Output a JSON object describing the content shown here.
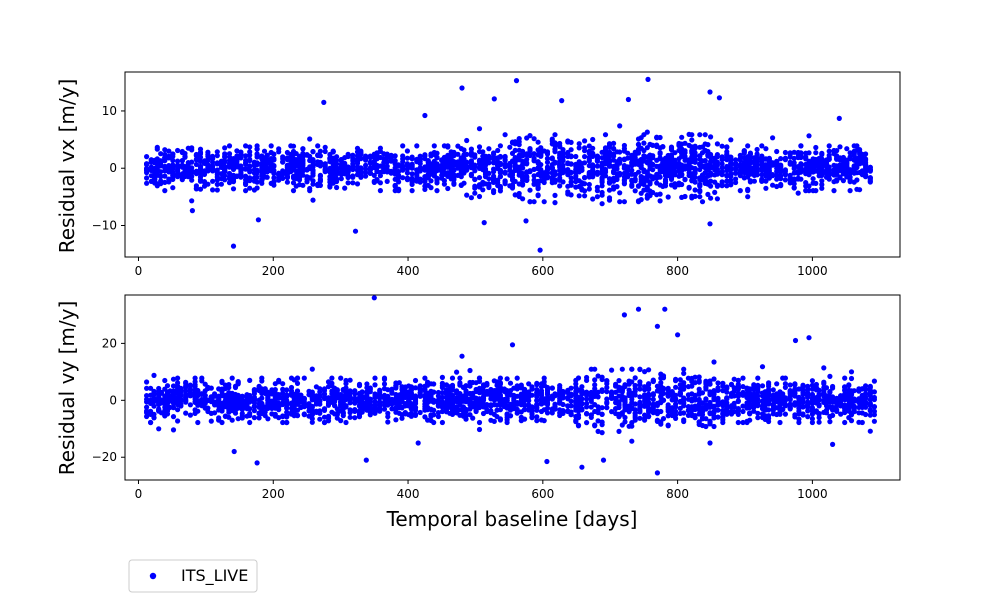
{
  "chart_data": [
    {
      "type": "scatter",
      "ylabel": "Residual vx [m/y]",
      "xlim": [
        -20,
        1130
      ],
      "ylim": [
        -15.5,
        16.8
      ],
      "xticks": [
        0,
        200,
        400,
        600,
        800,
        1000
      ],
      "yticks": [
        -10,
        0,
        10
      ],
      "series": [
        {
          "name": "ITS_LIVE",
          "color": "#0000ff",
          "marker": "circle",
          "x_min": 12,
          "x_max": 1092,
          "typical_spread": 3,
          "notable_points": [
            {
              "x": 141,
              "y": -13.6
            },
            {
              "x": 275,
              "y": 11.5
            },
            {
              "x": 322,
              "y": -11.0
            },
            {
              "x": 480,
              "y": 14.0
            },
            {
              "x": 561,
              "y": 15.3
            },
            {
              "x": 596,
              "y": -14.3
            },
            {
              "x": 756,
              "y": 15.5
            },
            {
              "x": 848,
              "y": 13.3
            },
            {
              "x": 1040,
              "y": 8.7
            },
            {
              "x": 628,
              "y": 11.8
            },
            {
              "x": 727,
              "y": 12.0
            },
            {
              "x": 862,
              "y": 12.3
            },
            {
              "x": 528,
              "y": 12.1
            },
            {
              "x": 425,
              "y": 9.2
            },
            {
              "x": 178,
              "y": -9.0
            },
            {
              "x": 80,
              "y": -7.4
            },
            {
              "x": 848,
              "y": -9.7
            },
            {
              "x": 513,
              "y": -9.5
            },
            {
              "x": 575,
              "y": -9.2
            }
          ]
        }
      ]
    },
    {
      "type": "scatter",
      "ylabel": "Residual vy [m/y]",
      "xlabel": "Temporal baseline [days]",
      "xlim": [
        -20,
        1130
      ],
      "ylim": [
        -28,
        37
      ],
      "xticks": [
        0,
        200,
        400,
        600,
        800,
        1000
      ],
      "yticks": [
        -20,
        0,
        20
      ],
      "series": [
        {
          "name": "ITS_LIVE",
          "color": "#0000ff",
          "marker": "circle",
          "x_min": 12,
          "x_max": 1092,
          "typical_spread": 6,
          "notable_points": [
            {
              "x": 350,
              "y": 36.0
            },
            {
              "x": 742,
              "y": 32.0
            },
            {
              "x": 781,
              "y": 32.0
            },
            {
              "x": 721,
              "y": 30.0
            },
            {
              "x": 770,
              "y": 26.0
            },
            {
              "x": 800,
              "y": 23.0
            },
            {
              "x": 975,
              "y": 21.0
            },
            {
              "x": 995,
              "y": 22.0
            },
            {
              "x": 555,
              "y": 19.5
            },
            {
              "x": 480,
              "y": 15.5
            },
            {
              "x": 176,
              "y": -22.0
            },
            {
              "x": 338,
              "y": -21.0
            },
            {
              "x": 606,
              "y": -21.5
            },
            {
              "x": 658,
              "y": -23.5
            },
            {
              "x": 770,
              "y": -25.5
            },
            {
              "x": 690,
              "y": -21.0
            },
            {
              "x": 142,
              "y": -18.0
            },
            {
              "x": 1030,
              "y": -15.5
            },
            {
              "x": 415,
              "y": -15.0
            },
            {
              "x": 848,
              "y": -15.0
            }
          ]
        }
      ]
    }
  ],
  "legend": {
    "label": "ITS_LIVE",
    "placement": "below plots, left"
  }
}
